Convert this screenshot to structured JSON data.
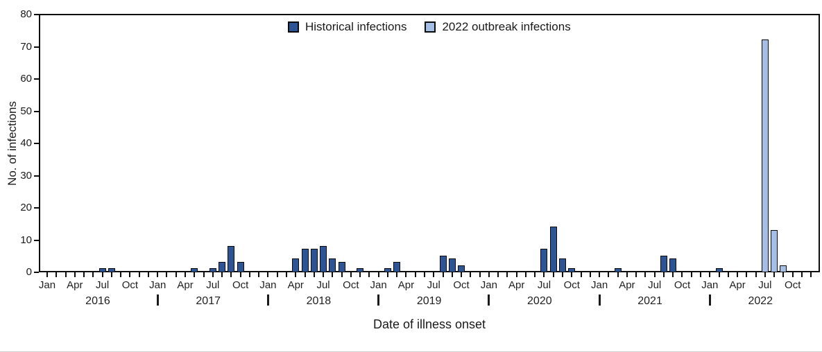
{
  "chart_data": {
    "type": "bar",
    "title": "",
    "xlabel": "Date of illness onset",
    "ylabel": "No. of infections",
    "ylim": [
      0,
      80
    ],
    "ytick_interval": 10,
    "yticks": [
      0,
      10,
      20,
      30,
      40,
      50,
      60,
      70,
      80
    ],
    "years": [
      "2016",
      "2017",
      "2018",
      "2019",
      "2020",
      "2021",
      "2022"
    ],
    "month_tick_labels": [
      "Jan",
      "Apr",
      "Jul",
      "Oct"
    ],
    "grid": "off",
    "legend_position": "top-center",
    "bar_border_color": "#0a0a0a",
    "legend": [
      {
        "label": "Historical infections",
        "color": "#2d5596",
        "series": "historical"
      },
      {
        "label": "2022 outbreak infections",
        "color": "#a5bee5",
        "series": "outbreak_2022"
      }
    ],
    "series": [
      {
        "name": "Historical infections",
        "color": "#2d5596",
        "points": [
          {
            "year": 2016,
            "month": 7,
            "value": 1
          },
          {
            "year": 2016,
            "month": 8,
            "value": 1
          },
          {
            "year": 2017,
            "month": 5,
            "value": 1
          },
          {
            "year": 2017,
            "month": 7,
            "value": 1
          },
          {
            "year": 2017,
            "month": 8,
            "value": 3
          },
          {
            "year": 2017,
            "month": 9,
            "value": 8
          },
          {
            "year": 2017,
            "month": 10,
            "value": 3
          },
          {
            "year": 2018,
            "month": 4,
            "value": 4
          },
          {
            "year": 2018,
            "month": 5,
            "value": 7
          },
          {
            "year": 2018,
            "month": 6,
            "value": 7
          },
          {
            "year": 2018,
            "month": 7,
            "value": 8
          },
          {
            "year": 2018,
            "month": 8,
            "value": 4
          },
          {
            "year": 2018,
            "month": 9,
            "value": 3
          },
          {
            "year": 2018,
            "month": 11,
            "value": 1
          },
          {
            "year": 2019,
            "month": 2,
            "value": 1
          },
          {
            "year": 2019,
            "month": 3,
            "value": 3
          },
          {
            "year": 2019,
            "month": 8,
            "value": 5
          },
          {
            "year": 2019,
            "month": 9,
            "value": 4
          },
          {
            "year": 2019,
            "month": 10,
            "value": 2
          },
          {
            "year": 2020,
            "month": 7,
            "value": 7
          },
          {
            "year": 2020,
            "month": 8,
            "value": 14
          },
          {
            "year": 2020,
            "month": 9,
            "value": 4
          },
          {
            "year": 2020,
            "month": 10,
            "value": 1
          },
          {
            "year": 2021,
            "month": 3,
            "value": 1
          },
          {
            "year": 2021,
            "month": 8,
            "value": 5
          },
          {
            "year": 2021,
            "month": 9,
            "value": 4
          },
          {
            "year": 2022,
            "month": 2,
            "value": 1
          }
        ]
      },
      {
        "name": "2022 outbreak infections",
        "color": "#a5bee5",
        "points": [
          {
            "year": 2022,
            "month": 7,
            "value": 72
          },
          {
            "year": 2022,
            "month": 8,
            "value": 13
          },
          {
            "year": 2022,
            "month": 9,
            "value": 2
          }
        ]
      }
    ]
  }
}
